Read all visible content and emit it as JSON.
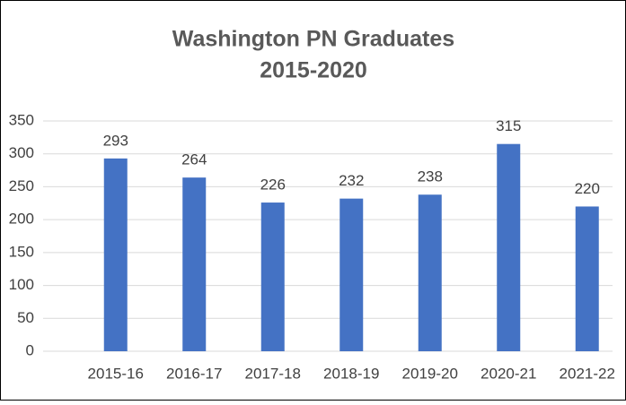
{
  "chart_data": {
    "type": "bar",
    "title": [
      "Washington PN Graduates",
      "2015-2020"
    ],
    "categories": [
      "2015-16",
      "2016-17",
      "2017-18",
      "2018-19",
      "2019-20",
      "2020-21",
      "2021-22"
    ],
    "values": [
      293,
      264,
      226,
      232,
      238,
      315,
      220
    ],
    "color": "#4472c4",
    "ylim": [
      0,
      350
    ],
    "yticks": [
      0,
      50,
      100,
      150,
      200,
      250,
      300,
      350
    ],
    "grid": true,
    "data_labels": true
  }
}
